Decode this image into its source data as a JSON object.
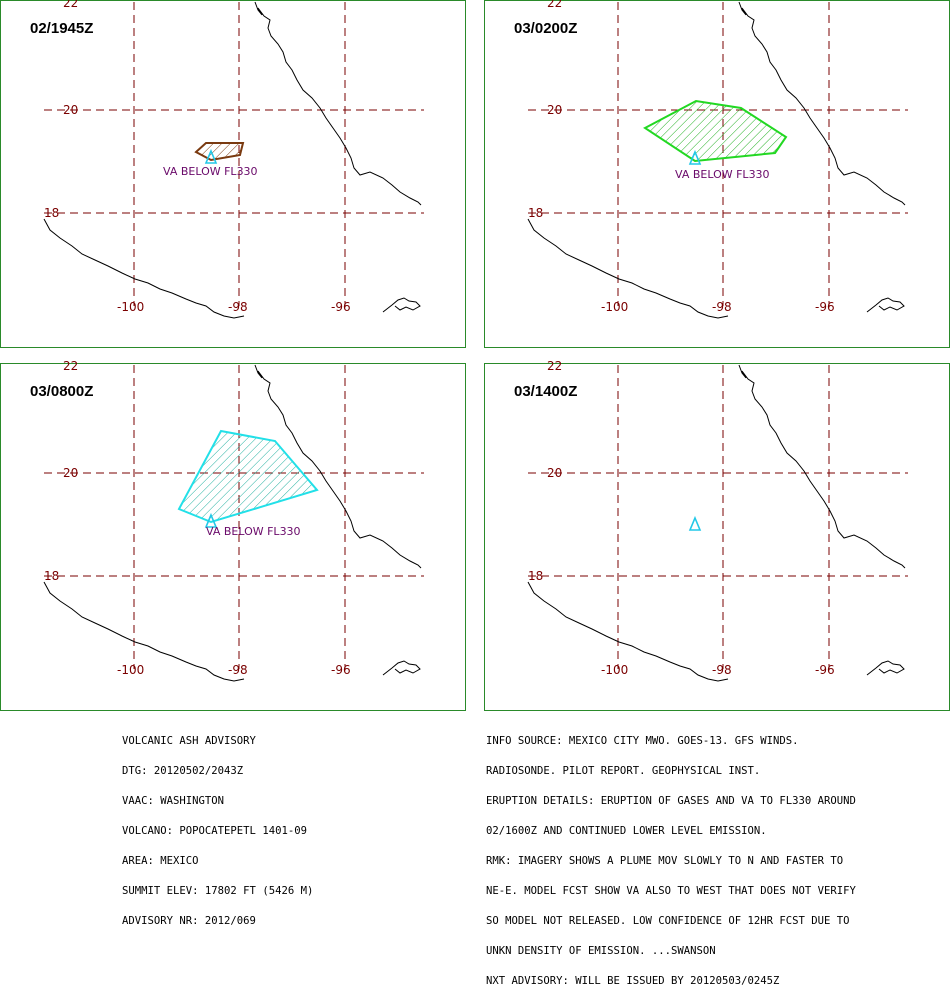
{
  "colors": {
    "frame": "#2a8a2a",
    "grid": "#7a0000",
    "coastline": "#000000",
    "label": "#6a0a6a",
    "volcano": "#22c8e8"
  },
  "grid_labels": {
    "lat_22": "22",
    "lat_20": "20",
    "lat_18": "18",
    "lon_100": "-100",
    "lon_98": "-98",
    "lon_96": "-96"
  },
  "panels": [
    {
      "time": "02/1945Z",
      "label": "VA  BELOW FL330",
      "polygon_color": "#7a3a10",
      "volcano_icon": "triangle-icon"
    },
    {
      "time": "03/0200Z",
      "label": "VA  BELOW FL330",
      "polygon_color": "#22d822",
      "volcano_icon": "triangle-icon"
    },
    {
      "time": "03/0800Z",
      "label": "VA  BELOW FL330",
      "polygon_color": "#22e0e8",
      "volcano_icon": "triangle-icon"
    },
    {
      "time": "03/1400Z",
      "label": "",
      "polygon_color": "",
      "volcano_icon": "triangle-icon"
    }
  ],
  "advisory_left": [
    "VOLCANIC ASH ADVISORY",
    "DTG: 20120502/2043Z",
    "VAAC: WASHINGTON",
    "VOLCANO: POPOCATEPETL 1401-09",
    "AREA: MEXICO",
    "SUMMIT ELEV: 17802 FT (5426 M)",
    "ADVISORY NR: 2012/069"
  ],
  "advisory_right": [
    "INFO SOURCE: MEXICO CITY MWO. GOES-13. GFS WINDS.",
    "RADIOSONDE. PILOT REPORT. GEOPHYSICAL INST.",
    "ERUPTION DETAILS: ERUPTION OF GASES AND VA TO FL330 AROUND",
    "02/1600Z AND CONTINUED LOWER LEVEL EMISSION.",
    "RMK: IMAGERY SHOWS A PLUME MOV SLOWLY TO N AND FASTER TO",
    "NE-E. MODEL FCST SHOW VA ALSO TO WEST THAT DOES NOT VERIFY",
    "SO MODEL NOT RELEASED. LOW CONFIDENCE OF 12HR FCST DUE TO",
    "UNKN DENSITY OF EMISSION. ...SWANSON",
    "NXT ADVISORY: WILL BE ISSUED BY 20120503/0245Z"
  ]
}
